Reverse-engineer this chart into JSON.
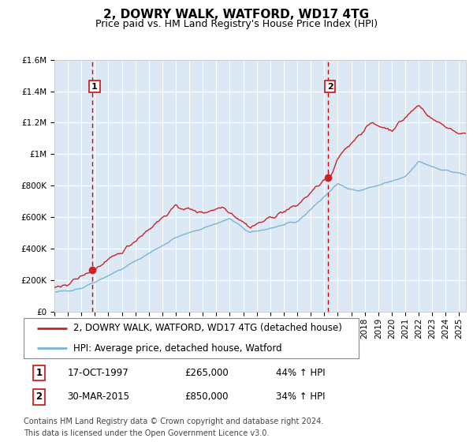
{
  "title": "2, DOWRY WALK, WATFORD, WD17 4TG",
  "subtitle": "Price paid vs. HM Land Registry's House Price Index (HPI)",
  "ylim": [
    0,
    1600000
  ],
  "xlim_start": 1995.0,
  "xlim_end": 2025.5,
  "ytick_labels": [
    "£0",
    "£200K",
    "£400K",
    "£600K",
    "£800K",
    "£1M",
    "£1.2M",
    "£1.4M",
    "£1.6M"
  ],
  "ytick_values": [
    0,
    200000,
    400000,
    600000,
    800000,
    1000000,
    1200000,
    1400000,
    1600000
  ],
  "sale1_x": 1997.8,
  "sale1_y": 265000,
  "sale1_label": "1",
  "sale1_date": "17-OCT-1997",
  "sale1_price": "£265,000",
  "sale1_hpi": "44% ↑ HPI",
  "sale2_x": 2015.25,
  "sale2_y": 850000,
  "sale2_label": "2",
  "sale2_date": "30-MAR-2015",
  "sale2_price": "£850,000",
  "sale2_hpi": "34% ↑ HPI",
  "hpi_line_color": "#7ab4d8",
  "price_line_color": "#cc2222",
  "marker_color": "#cc2222",
  "vline_color": "#dd0000",
  "plot_bg_color": "#dce9f5",
  "legend_label_red": "2, DOWRY WALK, WATFORD, WD17 4TG (detached house)",
  "legend_label_blue": "HPI: Average price, detached house, Watford",
  "footer_line1": "Contains HM Land Registry data © Crown copyright and database right 2024.",
  "footer_line2": "This data is licensed under the Open Government Licence v3.0.",
  "title_fontsize": 11,
  "subtitle_fontsize": 9,
  "tick_fontsize": 7.5,
  "legend_fontsize": 8.5,
  "footer_fontsize": 7
}
